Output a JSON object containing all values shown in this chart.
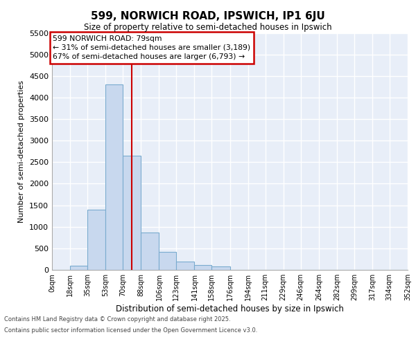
{
  "title": "599, NORWICH ROAD, IPSWICH, IP1 6JU",
  "subtitle": "Size of property relative to semi-detached houses in Ipswich",
  "xlabel": "Distribution of semi-detached houses by size in Ipswich",
  "ylabel": "Number of semi-detached properties",
  "bin_labels": [
    "0sqm",
    "18sqm",
    "35sqm",
    "53sqm",
    "70sqm",
    "88sqm",
    "106sqm",
    "123sqm",
    "141sqm",
    "158sqm",
    "176sqm",
    "194sqm",
    "211sqm",
    "229sqm",
    "246sqm",
    "264sqm",
    "282sqm",
    "299sqm",
    "317sqm",
    "334sqm",
    "352sqm"
  ],
  "bin_edges": [
    0,
    18,
    35,
    53,
    70,
    88,
    106,
    123,
    141,
    158,
    176,
    194,
    211,
    229,
    246,
    264,
    282,
    299,
    317,
    334,
    352
  ],
  "bar_heights": [
    0,
    100,
    1400,
    4300,
    2650,
    870,
    420,
    190,
    120,
    80,
    0,
    0,
    0,
    0,
    0,
    0,
    0,
    0,
    0,
    0
  ],
  "bar_color": "#c8d8ee",
  "bar_edge_color": "#7aabcf",
  "property_value": 79,
  "property_line_color": "#cc0000",
  "annotation_line1": "599 NORWICH ROAD: 79sqm",
  "annotation_line2": "← 31% of semi-detached houses are smaller (3,189)",
  "annotation_line3": "67% of semi-detached houses are larger (6,793) →",
  "annotation_box_color": "#cc0000",
  "ylim_max": 5500,
  "yticks": [
    0,
    500,
    1000,
    1500,
    2000,
    2500,
    3000,
    3500,
    4000,
    4500,
    5000,
    5500
  ],
  "plot_bg": "#e8eef8",
  "grid_color": "#ffffff",
  "footer_line1": "Contains HM Land Registry data © Crown copyright and database right 2025.",
  "footer_line2": "Contains public sector information licensed under the Open Government Licence v3.0."
}
